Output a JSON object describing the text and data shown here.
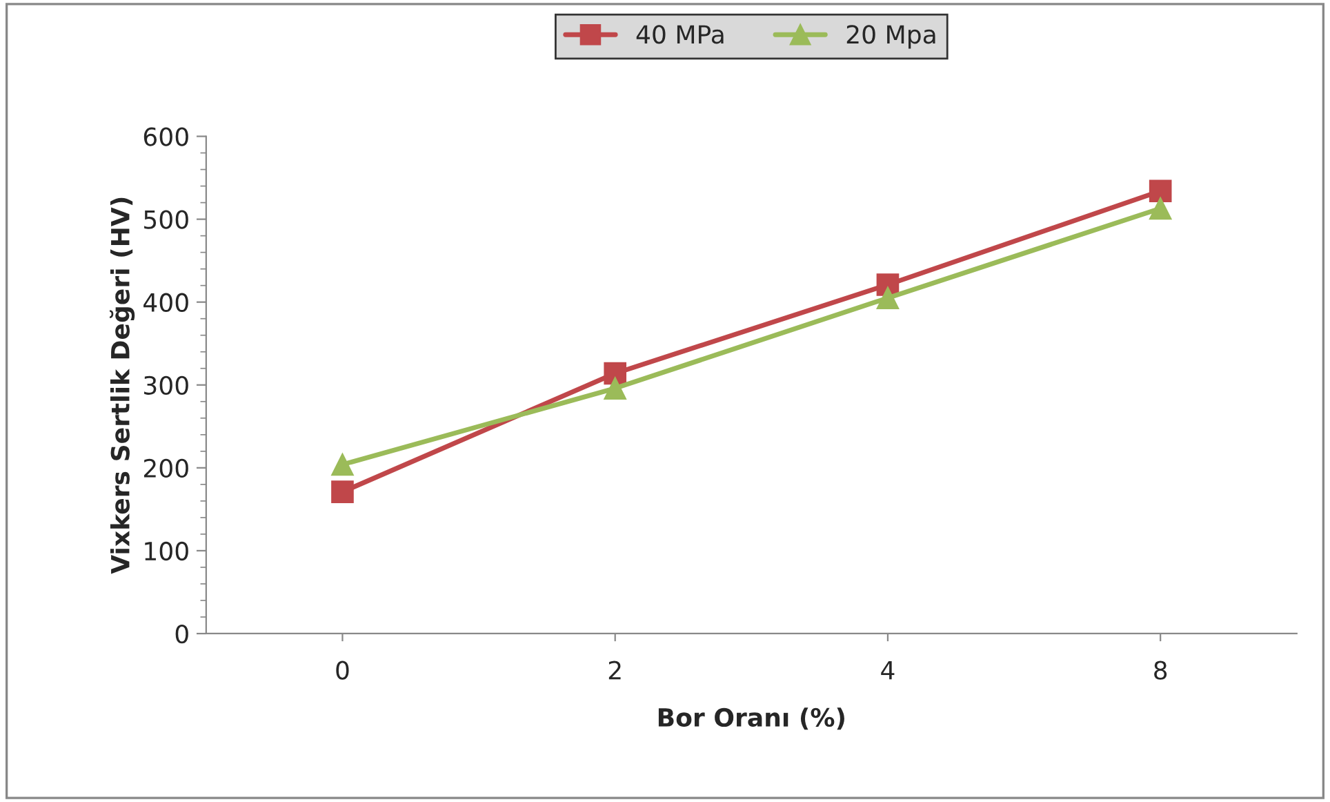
{
  "chart_data": {
    "type": "line",
    "xlabel": "Bor Oranı (%)",
    "ylabel": "Vixkers Sertlik Değeri (HV)",
    "categories": [
      "0",
      "2",
      "4",
      "8"
    ],
    "series": [
      {
        "name": "40 MPa",
        "color": "#c0474a",
        "values": [
          171,
          314,
          421,
          534
        ],
        "marker": "square"
      },
      {
        "name": "20 Mpa",
        "color": "#9bbb59",
        "values": [
          204,
          296,
          405,
          513
        ],
        "marker": "triangle"
      }
    ],
    "ylim": [
      0,
      600
    ],
    "yticks": [
      0,
      100,
      200,
      300,
      400,
      500,
      600
    ],
    "grid": false,
    "legend": "top",
    "line_style": "solid"
  }
}
